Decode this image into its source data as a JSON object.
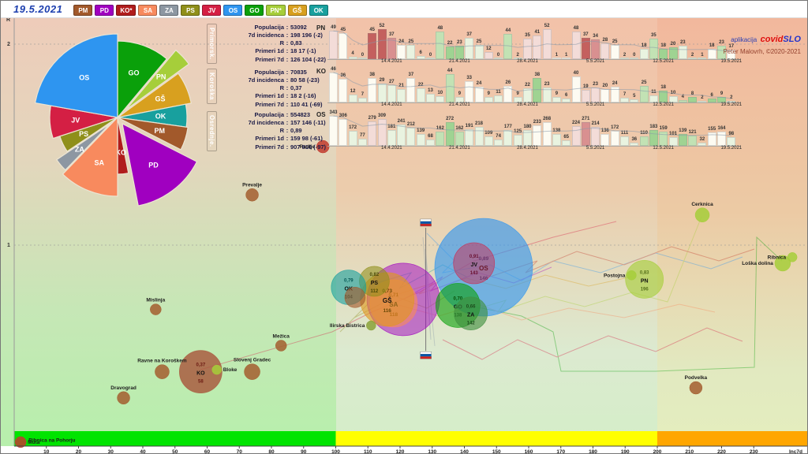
{
  "header": {
    "date": "19.5.2021",
    "app_prefix": "aplikacija",
    "brand_red": "covid",
    "brand_blue": "SLO",
    "credit": "Peter Malovrh, ©2020-2021",
    "region_buttons": [
      {
        "code": "PM",
        "color": "#a2592b"
      },
      {
        "code": "PD",
        "color": "#a000c0"
      },
      {
        "code": "KO*",
        "color": "#b01c1c"
      },
      {
        "code": "SA",
        "color": "#f88a5e"
      },
      {
        "code": "ZA",
        "color": "#8d97a2"
      },
      {
        "code": "PS",
        "color": "#8f8f1a"
      },
      {
        "code": "JV",
        "color": "#d41f44"
      },
      {
        "code": "OS",
        "color": "#2e95f0"
      },
      {
        "code": "GO",
        "color": "#0aa00a"
      },
      {
        "code": "PN*",
        "color": "#a6ce3a"
      },
      {
        "code": "GŠ",
        "color": "#d8a01f"
      },
      {
        "code": "OK",
        "color": "#18a09e"
      }
    ]
  },
  "axis": {
    "x_label": "Inc7d",
    "y_label": "R",
    "x_ticks": [
      10,
      20,
      30,
      40,
      50,
      60,
      70,
      80,
      90,
      100,
      110,
      120,
      130,
      140,
      150,
      160,
      170,
      180,
      190,
      200,
      210,
      220,
      230
    ],
    "y_ticks": [
      1,
      2
    ]
  },
  "panels": [
    {
      "tab": "Primorsk.",
      "tab_color": "#a6ce3a",
      "rows": [
        {
          "label": "Populacija",
          "value": "53092"
        },
        {
          "label": "7d incidenca",
          "value": "198 196 (-2)"
        },
        {
          "label": "R",
          "value": "0,83"
        },
        {
          "label": "Primeri 1d",
          "value": "18 17 (-1)"
        },
        {
          "label": "Primeri 7d",
          "value": "126 104 (-22)"
        }
      ]
    },
    {
      "tab": "Koroška",
      "tab_color": "#b01c1c",
      "rows": [
        {
          "label": "Populacija",
          "value": "70835"
        },
        {
          "label": "7d incidenca",
          "value": "80 58 (-23)"
        },
        {
          "label": "R",
          "value": "0,37"
        },
        {
          "label": "Primeri 1d",
          "value": "18 2 (-16)"
        },
        {
          "label": "Primeri 7d",
          "value": "110 41 (-69)"
        }
      ]
    },
    {
      "tab": "Osrednje.",
      "tab_color": "#2e95f0",
      "rows": [
        {
          "label": "Populacija",
          "value": "554823"
        },
        {
          "label": "7d incidenca",
          "value": "157 146 (-11)"
        },
        {
          "label": "R",
          "value": "0,89"
        },
        {
          "label": "Primeri 1d",
          "value": "159 98 (-61)"
        },
        {
          "label": "Primeri 7d",
          "value": "907 810 (-97)"
        }
      ]
    }
  ],
  "chart_data": [
    {
      "type": "pie",
      "title": "share of cases by region",
      "slices": [
        {
          "label": "GO",
          "pct": 11.1,
          "angle": 40,
          "radius": 97,
          "explode": 0,
          "color": "#0aa00a"
        },
        {
          "label": "PN",
          "pct": 3.9,
          "angle": 14,
          "radius": 99,
          "explode": 14,
          "color": "#a6ce3a"
        },
        {
          "label": "GŠ",
          "pct": 6.9,
          "angle": 25,
          "radius": 95,
          "explode": 0,
          "color": "#d8a01f"
        },
        {
          "label": "OK",
          "pct": 5.3,
          "angle": 19,
          "radius": 88,
          "explode": 0,
          "color": "#18a09e"
        },
        {
          "label": "PM",
          "pct": 5.3,
          "angle": 19,
          "radius": 90,
          "explode": 0,
          "color": "#a2592b"
        },
        {
          "label": "PD",
          "pct": 14.4,
          "angle": 52,
          "radius": 106,
          "explode": 10,
          "color": "#a000c0"
        },
        {
          "label": "KO",
          "pct": 3.1,
          "angle": 11,
          "radius": 72,
          "explode": 0,
          "color": "#b01c1c"
        },
        {
          "label": "SA",
          "pct": 12.2,
          "angle": 44,
          "radius": 100,
          "explode": 0,
          "color": "#f88a5e"
        },
        {
          "label": "ZA",
          "pct": 3.3,
          "angle": 12,
          "radius": 82,
          "explode": 12,
          "color": "#8d97a2"
        },
        {
          "label": "PS",
          "pct": 4.4,
          "angle": 16,
          "radius": 77,
          "explode": 0,
          "color": "#8f8f1a"
        },
        {
          "label": "JV",
          "pct": 7.8,
          "angle": 28,
          "radius": 86,
          "explode": 0,
          "color": "#d41f44"
        },
        {
          "label": "OS",
          "pct": 22.3,
          "angle": 80,
          "radius": 106,
          "explode": 0,
          "color": "#2e95f0"
        }
      ]
    },
    {
      "type": "bar",
      "code": "PN",
      "title": "PN daily cases 14.4.2021–19.5.2021",
      "values": [
        49,
        45,
        4,
        0,
        45,
        52,
        37,
        24,
        25,
        6,
        0,
        48,
        22,
        23,
        37,
        25,
        12,
        0,
        44,
        2,
        35,
        41,
        52,
        1,
        1,
        48,
        37,
        34,
        28,
        25,
        2,
        0,
        18,
        35,
        18,
        20,
        23,
        2,
        1,
        18,
        23,
        17
      ],
      "tones": [
        "p",
        "w",
        "e",
        "e",
        "R",
        "R",
        "r",
        "w",
        "e",
        "e",
        "e",
        "g",
        "G",
        "G",
        "e",
        "e",
        "p",
        "e",
        "g",
        "e",
        "p",
        "p",
        "p",
        "w",
        "w",
        "p",
        "R",
        "r",
        "p",
        "w",
        "e",
        "e",
        "e",
        "g",
        "G",
        "G",
        "e",
        "e",
        "e",
        "w",
        "g",
        "w"
      ],
      "date_ticks": [
        "14.4.2021",
        "21.4.2021",
        "28.4.2021",
        "5.5.2021",
        "12.5.2021",
        "19.5.2021"
      ],
      "date_tick_indices": [
        6,
        13,
        20,
        27,
        34,
        41
      ]
    },
    {
      "type": "bar",
      "code": "KO",
      "title": "KO daily cases 14.4.2021–19.5.2021",
      "values": [
        46,
        36,
        12,
        7,
        38,
        29,
        27,
        21,
        37,
        22,
        13,
        10,
        44,
        9,
        33,
        24,
        9,
        11,
        26,
        9,
        22,
        38,
        23,
        9,
        6,
        40,
        19,
        23,
        20,
        24,
        7,
        5,
        25,
        11,
        18,
        10,
        4,
        8,
        2,
        6,
        9,
        2
      ],
      "tones": [
        "w",
        "w",
        "e",
        "e",
        "w",
        "e",
        "e",
        "e",
        "w",
        "e",
        "e",
        "e",
        "g",
        "e",
        "w",
        "w",
        "e",
        "e",
        "w",
        "e",
        "e",
        "G",
        "e",
        "e",
        "e",
        "w",
        "p",
        "p",
        "w",
        "w",
        "e",
        "e",
        "g",
        "e",
        "G",
        "e",
        "g",
        "G",
        "e",
        "G",
        "G",
        "e"
      ],
      "date_ticks": [
        "14.4.2021",
        "21.4.2021",
        "28.4.2021",
        "5.5.2021",
        "12.5.2021",
        "19.5.2021"
      ],
      "date_tick_indices": [
        6,
        13,
        20,
        27,
        34,
        41
      ]
    },
    {
      "type": "bar",
      "code": "OS",
      "title": "OS daily cases 14.4.2021–19.5.2021",
      "values": [
        343,
        306,
        172,
        77,
        279,
        309,
        181,
        241,
        212,
        139,
        68,
        162,
        272,
        162,
        191,
        218,
        109,
        74,
        177,
        125,
        180,
        233,
        268,
        138,
        65,
        224,
        271,
        214,
        136,
        172,
        111,
        36,
        110,
        183,
        159,
        101,
        139,
        121,
        32,
        155,
        164,
        98
      ],
      "tones": [
        "w",
        "w",
        "e",
        "e",
        "p",
        "p",
        "e",
        "e",
        "e",
        "e",
        "e",
        "g",
        "G",
        "g",
        "e",
        "e",
        "e",
        "e",
        "e",
        "e",
        "e",
        "w",
        "w",
        "e",
        "e",
        "p",
        "r",
        "p",
        "w",
        "w",
        "e",
        "e",
        "g",
        "G",
        "g",
        "e",
        "G",
        "g",
        "e",
        "w",
        "w",
        "e"
      ],
      "date_ticks": [
        "14.4.2021",
        "21.4.2021",
        "28.4.2021",
        "5.5.2021",
        "12.5.2021",
        "19.5.2021"
      ],
      "date_tick_indices": [
        6,
        13,
        20,
        27,
        34,
        41
      ]
    },
    {
      "type": "scatter",
      "xlabel": "Inc7d",
      "ylabel": "R",
      "x_range": [
        0,
        247
      ],
      "y_range": [
        0,
        2.13
      ],
      "bands": [
        {
          "from": 0,
          "to": 100,
          "color": "#00e400"
        },
        {
          "from": 100,
          "to": 200,
          "color": "#ffff00"
        },
        {
          "from": 200,
          "to": 247,
          "color": "#ffa600"
        }
      ],
      "marker": {
        "name": "slovenia",
        "inc": 128,
        "r_top": 1.11,
        "r_bottom": 0.45
      },
      "regions": [
        {
          "code": "PD",
          "R": 0.73,
          "inc": 121,
          "r_label": "",
          "inc_label": "",
          "radius": 46,
          "color": "#a000c0",
          "text": "#6a0080",
          "op": 0.5
        },
        {
          "code": "SA",
          "R": 0.71,
          "inc": 118,
          "r_label": "0,71",
          "inc_label": "118",
          "radius": 30,
          "color": "#f88a5e",
          "text": "#8a3a1a",
          "op": 0.6
        },
        {
          "code": "GŠ",
          "R": 0.73,
          "inc": 116,
          "r_label": "0,73",
          "inc_label": "116",
          "radius": 34,
          "color": "#e0981f",
          "text": "#6b4a08",
          "op": 0.62
        },
        {
          "code": "PS",
          "R": 0.82,
          "inc": 112,
          "r_label": "0,82",
          "inc_label": "112",
          "radius": 19,
          "color": "#8f8f1a",
          "text": "#4a4a08",
          "op": 0.58
        },
        {
          "code": "OK",
          "R": 0.79,
          "inc": 104,
          "r_label": "0,79",
          "inc_label": "104",
          "radius": 22,
          "color": "#18a09e",
          "text": "#075a57",
          "op": 0.6
        },
        {
          "code": "PM",
          "R": 0.74,
          "inc": 106,
          "r_label": "",
          "inc_label": "",
          "radius": 13,
          "color": "#a2592b",
          "text": "#5a2d12",
          "op": 0.62
        },
        {
          "code": "OS",
          "R": 0.89,
          "inc": 146,
          "r_label": "0,89",
          "inc_label": "146",
          "radius": 62,
          "color": "#2e95f0",
          "text": "#174f91",
          "op": 0.62
        },
        {
          "code": "JV",
          "R": 0.91,
          "inc": 143,
          "r_label": "0,91",
          "inc_label": "143",
          "radius": 26,
          "color": "#d41f44",
          "text": "#6a1030",
          "op": 0.45
        },
        {
          "code": "GO",
          "R": 0.7,
          "inc": 138,
          "r_label": "0,70",
          "inc_label": "138",
          "radius": 28,
          "color": "#0aa00a",
          "text": "#064f06",
          "op": 0.6
        },
        {
          "code": "ZA",
          "R": 0.66,
          "inc": 142,
          "r_label": "0,66",
          "inc_label": "142",
          "radius": 21,
          "color": "#3f8f3f",
          "text": "#1d4d1d",
          "op": 0.62
        },
        {
          "code": "KO",
          "R": 0.37,
          "inc": 58,
          "r_label": "0,37",
          "inc_label": "58",
          "radius": 27,
          "color": "#a8543a",
          "text": "#6b1a12",
          "op": 0.8
        },
        {
          "code": "PN",
          "R": 0.83,
          "inc": 196,
          "r_label": "0,83",
          "inc_label": "196",
          "radius": 24,
          "color": "#a6ce3a",
          "text": "#55701a",
          "op": 0.62
        }
      ],
      "towns": [
        {
          "name": "Radlje",
          "inc": 96,
          "R": 1.49,
          "radius": 8,
          "color": "#c23b2e",
          "align": "left"
        },
        {
          "name": "Prevalje",
          "inc": 74,
          "R": 1.25,
          "radius": 8,
          "color": "#a35e2f",
          "align": "above"
        },
        {
          "name": "Mislinja",
          "inc": 44,
          "R": 0.68,
          "radius": 7,
          "color": "#a35e2f",
          "align": "above"
        },
        {
          "name": "Mežica",
          "inc": 83,
          "R": 0.5,
          "radius": 7,
          "color": "#a35e2f",
          "align": "above"
        },
        {
          "name": "Ravne na Koroškem",
          "inc": 46,
          "R": 0.37,
          "radius": 9,
          "color": "#a35e2f",
          "align": "above"
        },
        {
          "name": "Dravograd",
          "inc": 34,
          "R": 0.24,
          "radius": 8,
          "color": "#a35e2f",
          "align": "above"
        },
        {
          "name": "Slovenj Gradec",
          "inc": 74,
          "R": 0.37,
          "radius": 10,
          "color": "#a35e2f",
          "align": "above"
        },
        {
          "name": "Bloke",
          "inc": 63,
          "R": 0.38,
          "radius": 6,
          "color": "#a6ce3a",
          "align": "right"
        },
        {
          "name": "Ilirska Bistrica",
          "inc": 111,
          "R": 0.6,
          "radius": 6,
          "color": "#8aa23a",
          "align": "left"
        },
        {
          "name": "Cerknica",
          "inc": 214,
          "R": 1.15,
          "radius": 9,
          "color": "#a6ce3a",
          "align": "above"
        },
        {
          "name": "Podvelka",
          "inc": 212,
          "R": 0.29,
          "radius": 8,
          "color": "#a35e2f",
          "align": "above"
        },
        {
          "name": "Loška dolina",
          "inc": 239,
          "R": 0.91,
          "radius": 10,
          "color": "#a6ce3a",
          "align": "left"
        },
        {
          "name": "Ribnica",
          "inc": 242,
          "R": 0.94,
          "radius": 6,
          "color": "#a6ce3a",
          "align": "left"
        },
        {
          "name": "Postojna",
          "inc": 192,
          "R": 0.85,
          "radius": 6,
          "color": "#a6ce3a",
          "align": "left"
        },
        {
          "name": "Muta",
          "inc": 2,
          "R": 0.02,
          "radius": 7,
          "color": "#c23b2e",
          "align": "right"
        },
        {
          "name": "Ribnica na Pohorju",
          "inc": 4,
          "R": 0.03,
          "radius": 0,
          "color": "#c23b2e",
          "align": "right"
        }
      ]
    }
  ]
}
